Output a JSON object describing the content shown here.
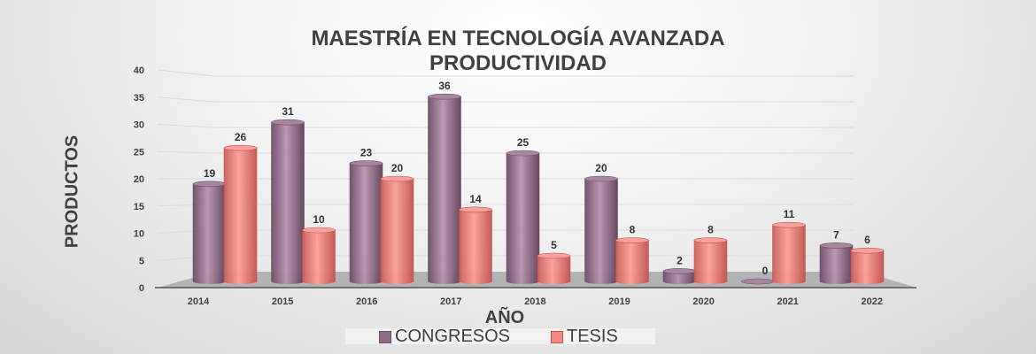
{
  "chart_data": {
    "type": "bar",
    "title": [
      "MAESTRÍA EN TECNOLOGÍA AVANZADA",
      "PRODUCTIVIDAD"
    ],
    "xlabel": "AÑO",
    "ylabel": "PRODUCTOS",
    "categories": [
      "2014",
      "2015",
      "2016",
      "2017",
      "2018",
      "2019",
      "2020",
      "2021",
      "2022"
    ],
    "series": [
      {
        "name": "CONGRESOS",
        "color": "#8e6a86",
        "values": [
          19,
          31,
          23,
          36,
          25,
          20,
          2,
          0,
          7
        ]
      },
      {
        "name": "TESIS",
        "color": "#f08a84",
        "values": [
          26,
          10,
          20,
          14,
          5,
          8,
          8,
          11,
          6
        ]
      }
    ],
    "ylim": [
      0,
      40
    ],
    "yticks": [
      0,
      5,
      10,
      15,
      20,
      25,
      30,
      35,
      40
    ],
    "grid": true,
    "legend": "bottom",
    "style": "3d-cylinder"
  }
}
